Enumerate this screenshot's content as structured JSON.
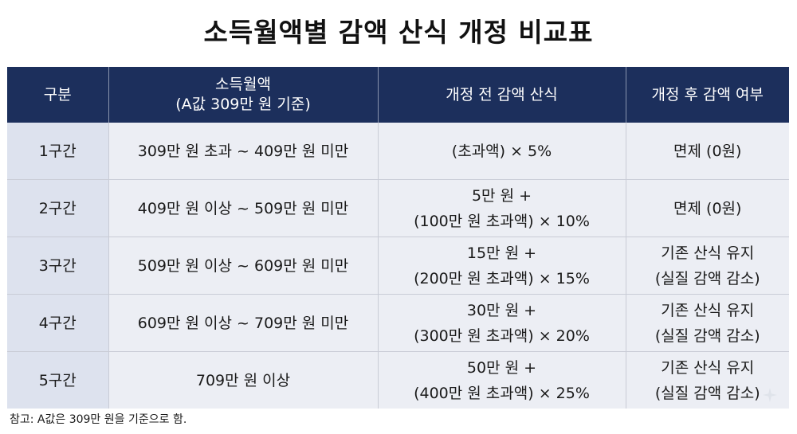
{
  "title": "소득월액별 감액 산식 개정 비교표",
  "table": {
    "headers": [
      {
        "line1": "구분",
        "line2": ""
      },
      {
        "line1": "소득월액",
        "line2": "(A값 309만 원 기준)"
      },
      {
        "line1": "개정 전 감액 산식",
        "line2": ""
      },
      {
        "line1": "개정 후 감액 여부",
        "line2": ""
      }
    ],
    "rows": [
      {
        "tier": "1구간",
        "range": "309만 원 초과 ~ 409만 원 미만",
        "before": [
          "(초과액) × 5%"
        ],
        "after": [
          "면제 (0원)"
        ]
      },
      {
        "tier": "2구간",
        "range": "409만 원 이상 ~ 509만 원 미만",
        "before": [
          "5만 원 +",
          "(100만 원 초과액) × 10%"
        ],
        "after": [
          "면제 (0원)"
        ]
      },
      {
        "tier": "3구간",
        "range": "509만 원 이상 ~ 609만 원 미만",
        "before": [
          "15만 원 +",
          "(200만 원 초과액) × 15%"
        ],
        "after": [
          "기존 산식 유지",
          "(실질 감액 감소)"
        ]
      },
      {
        "tier": "4구간",
        "range": "609만 원 이상 ~ 709만 원 미만",
        "before": [
          "30만 원 +",
          "(300만 원 초과액) × 20%"
        ],
        "after": [
          "기존 산식 유지",
          "(실질 감액 감소)"
        ]
      },
      {
        "tier": "5구간",
        "range": "709만 원 이상",
        "before": [
          "50만 원 +",
          "(400만 원 초과액) × 25%"
        ],
        "after": [
          "기존 산식 유지",
          "(실질 감액 감소)"
        ]
      }
    ]
  },
  "note": "참고: A값은 309만 원을 기준으로 함.",
  "colors": {
    "header_bg": "#1c2f5c",
    "first_col_bg": "#dde2ee",
    "cell_bg": "#eceef4"
  },
  "icons": {
    "corner": "sparkle-icon"
  }
}
